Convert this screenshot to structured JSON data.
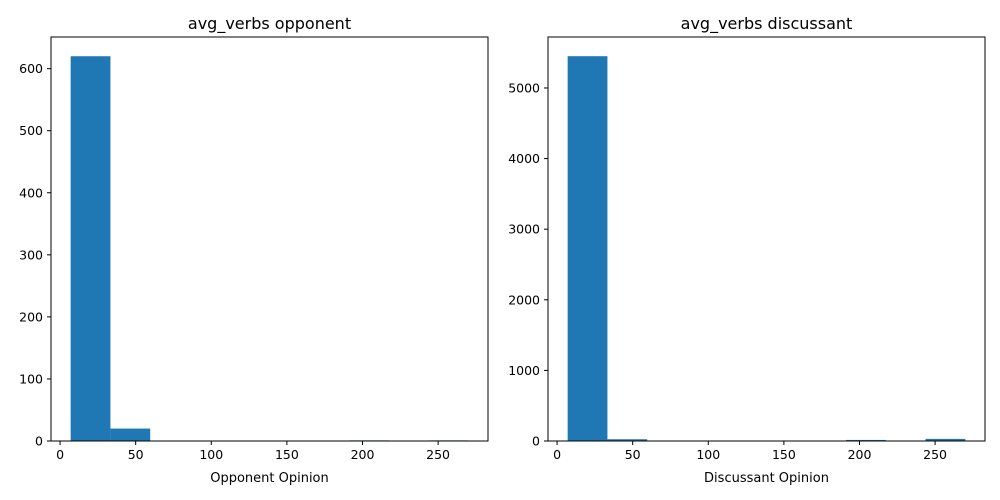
{
  "chart_data": [
    {
      "type": "bar",
      "title": "avg_verbs opponent",
      "xlabel": "Opponent Opinion",
      "ylabel": "",
      "bin_edges": [
        7,
        33.3,
        59.6,
        85.9,
        112.2,
        138.5,
        164.8,
        191.1,
        217.4,
        243.7,
        270
      ],
      "values": [
        620,
        20,
        0,
        0,
        0,
        0,
        0,
        1,
        0,
        1
      ],
      "xlim": [
        -6,
        283
      ],
      "ylim": [
        0,
        651
      ],
      "xticks": [
        "0",
        "50",
        "100",
        "150",
        "200",
        "250"
      ],
      "yticks": [
        "0",
        "100",
        "200",
        "300",
        "400",
        "500",
        "600"
      ],
      "color": "#1f77b4",
      "grid": false
    },
    {
      "type": "bar",
      "title": "avg_verbs discussant",
      "xlabel": "Discussant Opinion",
      "ylabel": "",
      "bin_edges": [
        7,
        33.3,
        59.6,
        85.9,
        112.2,
        138.5,
        164.8,
        191.1,
        217.4,
        243.7,
        270
      ],
      "values": [
        5450,
        25,
        0,
        0,
        0,
        0,
        0,
        15,
        0,
        30
      ],
      "xlim": [
        -6,
        283
      ],
      "ylim": [
        0,
        5722
      ],
      "xticks": [
        "0",
        "50",
        "100",
        "150",
        "200",
        "250"
      ],
      "yticks": [
        "0",
        "1000",
        "2000",
        "3000",
        "4000",
        "5000"
      ],
      "color": "#1f77b4",
      "grid": false
    }
  ]
}
